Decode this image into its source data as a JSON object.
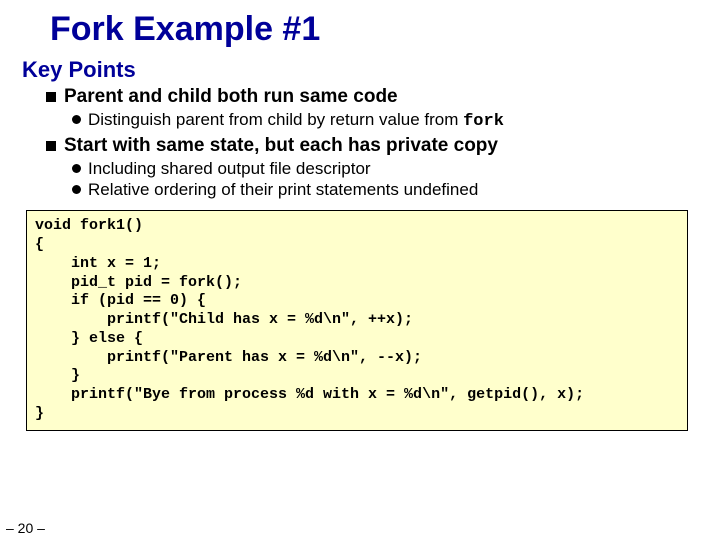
{
  "title": "Fork Example #1",
  "section": "Key Points",
  "colors": {
    "title": "#000099",
    "section": "#000099",
    "body": "#000000",
    "code_bg": "#ffffcc",
    "code_border": "#000000",
    "page_bg": "#ffffff",
    "bullet_square": "#000000",
    "bullet_round": "#000000"
  },
  "fonts": {
    "body_family": "Comic Sans MS",
    "code_family": "Courier New",
    "title_size_pt": 26,
    "section_size_pt": 17,
    "l1_size_pt": 14,
    "l2_size_pt": 13,
    "code_size_pt": 11
  },
  "b1": {
    "text": "Parent and child both run same code",
    "sub1_a": "Distinguish parent from child by return value from ",
    "sub1_code": "fork"
  },
  "b2": {
    "text": "Start with same state, but each has private copy",
    "sub1": "Including shared output file descriptor",
    "sub2": "Relative ordering of their print statements undefined"
  },
  "code": "void fork1()\n{\n    int x = 1;\n    pid_t pid = fork();\n    if (pid == 0) {\n        printf(\"Child has x = %d\\n\", ++x);\n    } else {\n        printf(\"Parent has x = %d\\n\", --x);\n    }\n    printf(\"Bye from process %d with x = %d\\n\", getpid(), x);\n}",
  "pagenum": "– 20 –"
}
